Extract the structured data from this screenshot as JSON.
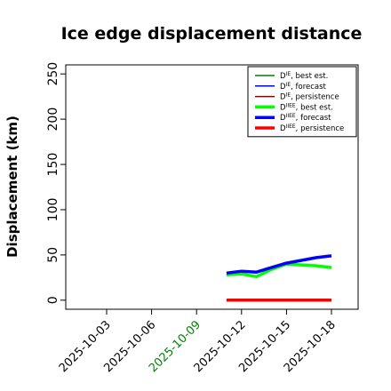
{
  "chart_data": {
    "type": "line",
    "title": "Ice edge displacement distance",
    "xlabel": "",
    "ylabel": "Displacement (km)",
    "ylim": [
      -10,
      260
    ],
    "yticks": [
      0,
      50,
      100,
      150,
      200,
      250
    ],
    "xticks": [
      "2025-10-03",
      "2025-10-06",
      "2025-10-09",
      "2025-10-12",
      "2025-10-15",
      "2025-10-18"
    ],
    "xtick_colors": [
      "#000000",
      "#000000",
      "#008000",
      "#000000",
      "#000000",
      "#000000"
    ],
    "grid": false,
    "legend_position": "top-right",
    "series": [
      {
        "legend_base": "D",
        "legend_sup": "IE",
        "legend_suffix": ", best est.",
        "color": "#008000",
        "linewidth": "thin",
        "x": [],
        "values": []
      },
      {
        "legend_base": "D",
        "legend_sup": "IE",
        "legend_suffix": ", forecast",
        "color": "#0000ff",
        "linewidth": "thin",
        "x": [],
        "values": []
      },
      {
        "legend_base": "D",
        "legend_sup": "IE",
        "legend_suffix": ", persistence",
        "color": "#8b0000",
        "linewidth": "thin",
        "x": [],
        "values": []
      },
      {
        "legend_base": "D",
        "legend_sup": "IIEE",
        "legend_suffix": ", best est.",
        "color": "#00ff00",
        "linewidth": "thick",
        "x": [
          "2025-10-11",
          "2025-10-12",
          "2025-10-13",
          "2025-10-14",
          "2025-10-15",
          "2025-10-16",
          "2025-10-17",
          "2025-10-18"
        ],
        "values": [
          28,
          29,
          26,
          34,
          40,
          39,
          38,
          36
        ]
      },
      {
        "legend_base": "D",
        "legend_sup": "IIEE",
        "legend_suffix": ", forecast",
        "color": "#0000ff",
        "linewidth": "thick",
        "x": [
          "2025-10-11",
          "2025-10-12",
          "2025-10-13",
          "2025-10-14",
          "2025-10-15",
          "2025-10-16",
          "2025-10-17",
          "2025-10-18"
        ],
        "values": [
          30,
          32,
          31,
          36,
          41,
          44,
          47,
          49
        ]
      },
      {
        "legend_base": "D",
        "legend_sup": "IIEE",
        "legend_suffix": ", persistence",
        "color": "#ff0000",
        "linewidth": "thick",
        "x": [
          "2025-10-11",
          "2025-10-12",
          "2025-10-13",
          "2025-10-14",
          "2025-10-15",
          "2025-10-16",
          "2025-10-17",
          "2025-10-18"
        ],
        "values": [
          0,
          0,
          0,
          0,
          0,
          0,
          0,
          0
        ]
      }
    ]
  }
}
